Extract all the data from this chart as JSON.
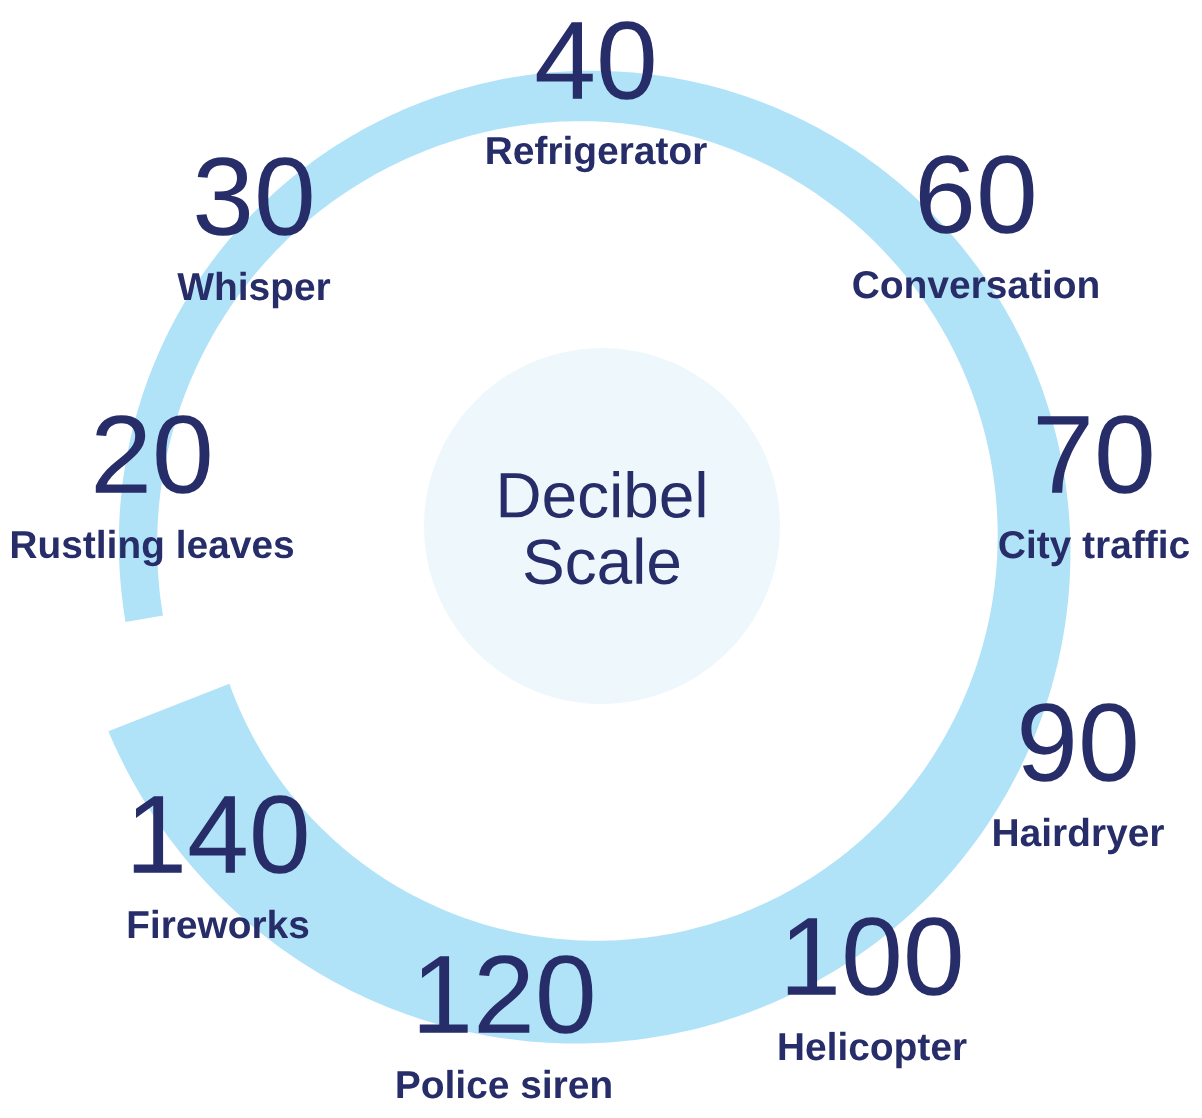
{
  "chart_data": {
    "type": "other",
    "title": "Decibel Scale",
    "categories": [
      "Rustling leaves",
      "Whisper",
      "Refrigerator",
      "Conversation",
      "City traffic",
      "Hairdryer",
      "Helicopter",
      "Police siren",
      "Fireworks"
    ],
    "values": [
      20,
      30,
      40,
      60,
      70,
      90,
      100,
      120,
      140
    ],
    "data_labels": true
  }
}
